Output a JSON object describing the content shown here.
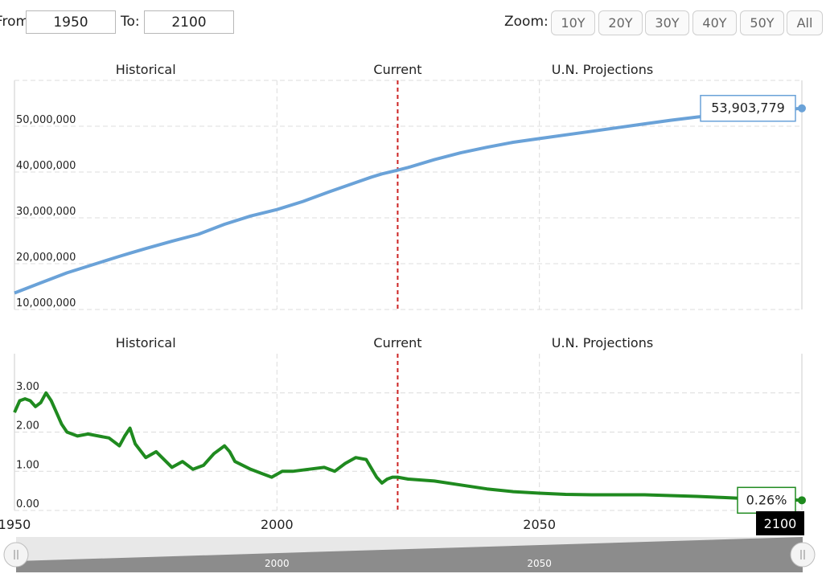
{
  "controls": {
    "from_label": "From:",
    "from_value": "1950",
    "to_label": "To:",
    "to_value": "2100",
    "zoom_label": "Zoom:",
    "zoom_buttons": [
      "10Y",
      "20Y",
      "30Y",
      "40Y",
      "50Y",
      "All"
    ]
  },
  "colors": {
    "population": "#6aa2d8",
    "growth": "#1f8a1f",
    "current_line": "#cc2222",
    "grid": "#dcdcdc",
    "navigator_fill": "#8c8c8c",
    "navigator_bg": "#e8e8e8"
  },
  "chart_data": [
    {
      "type": "line",
      "section_labels": [
        "Historical",
        "Current",
        "U.N. Projections"
      ],
      "current_year": 2023,
      "ylabel": "",
      "yticks": [
        "10,000,000",
        "20,000,000",
        "30,000,000",
        "40,000,000",
        "50,000,000"
      ],
      "ylim": [
        10000000,
        60000000
      ],
      "xlim": [
        1950,
        2100
      ],
      "tooltip": "53,903,779",
      "series": [
        {
          "x": [
            1950,
            1955,
            1960,
            1965,
            1970,
            1972,
            1975,
            1980,
            1985,
            1990,
            1995,
            2000,
            2005,
            2010,
            2015,
            2018,
            2020,
            2023,
            2025,
            2030,
            2035,
            2040,
            2045,
            2050,
            2055,
            2060,
            2065,
            2070,
            2075,
            2080,
            2085,
            2090,
            2095,
            2100
          ],
          "values": [
            13600000,
            15800000,
            18000000,
            19800000,
            21600000,
            22300000,
            23300000,
            24900000,
            26400000,
            28600000,
            30400000,
            31800000,
            33600000,
            35700000,
            37700000,
            38900000,
            39600000,
            40400000,
            41000000,
            42700000,
            44200000,
            45400000,
            46500000,
            47300000,
            48100000,
            48900000,
            49700000,
            50500000,
            51300000,
            52000000,
            52600000,
            53100000,
            53500000,
            53903779
          ]
        }
      ]
    },
    {
      "type": "line",
      "section_labels": [
        "Historical",
        "Current",
        "U.N. Projections"
      ],
      "current_year": 2023,
      "ylabel": "",
      "yticks": [
        "0.00",
        "1.00",
        "2.00",
        "3.00"
      ],
      "ylim": [
        0,
        4
      ],
      "xlim": [
        1950,
        2100
      ],
      "xticks": [
        "1950",
        "2000",
        "2050",
        "2100"
      ],
      "tooltip": "0.26%",
      "series": [
        {
          "x": [
            1950,
            1951,
            1952,
            1953,
            1954,
            1955,
            1956,
            1957,
            1958,
            1959,
            1960,
            1962,
            1964,
            1966,
            1968,
            1970,
            1971,
            1972,
            1973,
            1975,
            1977,
            1980,
            1982,
            1984,
            1986,
            1988,
            1990,
            1991,
            1992,
            1995,
            1997,
            1999,
            2001,
            2003,
            2006,
            2009,
            2011,
            2013,
            2015,
            2017,
            2019,
            2020,
            2021,
            2022,
            2023,
            2025,
            2030,
            2035,
            2040,
            2045,
            2050,
            2055,
            2060,
            2065,
            2070,
            2075,
            2080,
            2085,
            2090,
            2095,
            2100
          ],
          "values": [
            2.5,
            2.8,
            2.85,
            2.8,
            2.65,
            2.75,
            3.0,
            2.8,
            2.5,
            2.2,
            2.0,
            1.9,
            1.95,
            1.9,
            1.85,
            1.65,
            1.9,
            2.1,
            1.7,
            1.35,
            1.5,
            1.1,
            1.25,
            1.05,
            1.15,
            1.45,
            1.65,
            1.5,
            1.25,
            1.05,
            0.95,
            0.85,
            1.0,
            1.0,
            1.05,
            1.1,
            1.0,
            1.2,
            1.35,
            1.3,
            0.85,
            0.7,
            0.8,
            0.85,
            0.85,
            0.8,
            0.75,
            0.65,
            0.55,
            0.48,
            0.44,
            0.41,
            0.4,
            0.4,
            0.4,
            0.38,
            0.36,
            0.33,
            0.3,
            0.28,
            0.26
          ]
        }
      ]
    }
  ],
  "navigator": {
    "xticks": [
      "2000",
      "2050"
    ]
  }
}
